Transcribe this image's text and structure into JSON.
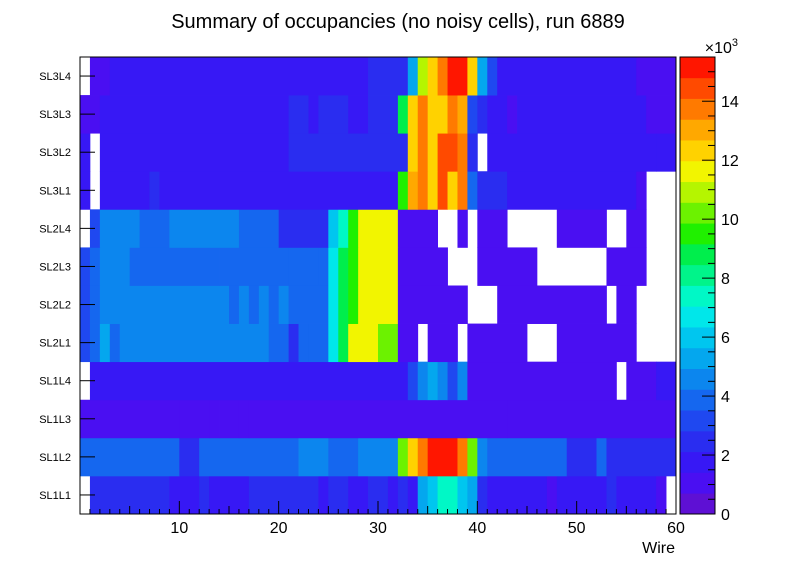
{
  "chart_data": {
    "type": "heatmap",
    "title": "Summary of occupancies (no noisy cells), run 6889",
    "xlabel": "Wire",
    "ylabel": "",
    "xlim": [
      0,
      60
    ],
    "x_ticks": [
      "10",
      "20",
      "30",
      "40",
      "50",
      "60"
    ],
    "y_categories": [
      "SL1L1",
      "SL1L2",
      "SL1L3",
      "SL1L4",
      "SL2L1",
      "SL2L2",
      "SL2L3",
      "SL2L4",
      "SL3L1",
      "SL3L2",
      "SL3L3",
      "SL3L4"
    ],
    "colorbar": {
      "range": [
        0,
        15.5
      ],
      "exponent_label": "×10",
      "exponent_power": "3",
      "ticks": [
        "0",
        "2",
        "4",
        "6",
        "8",
        "10",
        "12",
        "14"
      ]
    },
    "rows": [
      {
        "name": "SL1L1",
        "segments": [
          [
            0,
            1,
            null
          ],
          [
            1,
            9,
            2.8
          ],
          [
            9,
            12,
            1.6
          ],
          [
            12,
            13,
            2.4
          ],
          [
            13,
            17,
            1.6
          ],
          [
            17,
            24,
            2.8
          ],
          [
            24,
            25,
            1.6
          ],
          [
            25,
            27,
            2.8
          ],
          [
            27,
            29,
            1.6
          ],
          [
            29,
            31,
            2.8
          ],
          [
            31,
            32,
            1.6
          ],
          [
            32,
            33,
            2.8
          ],
          [
            33,
            34,
            1.6
          ],
          [
            34,
            35,
            5.3
          ],
          [
            35,
            36,
            6.2
          ],
          [
            36,
            38,
            7.2
          ],
          [
            38,
            39,
            6.2
          ],
          [
            39,
            40,
            5.3
          ],
          [
            40,
            41,
            2.8
          ],
          [
            41,
            47,
            1.6
          ],
          [
            47,
            48,
            1.0
          ],
          [
            48,
            53,
            1.6
          ],
          [
            53,
            54,
            2.4
          ],
          [
            54,
            58,
            1.6
          ],
          [
            58,
            59,
            1.0
          ],
          [
            59,
            60,
            null
          ]
        ]
      },
      {
        "name": "SL1L2",
        "segments": [
          [
            0,
            10,
            3.8
          ],
          [
            10,
            12,
            2.8
          ],
          [
            12,
            22,
            3.8
          ],
          [
            22,
            25,
            4.5
          ],
          [
            25,
            28,
            3.8
          ],
          [
            28,
            32,
            4.5
          ],
          [
            32,
            33,
            10.5
          ],
          [
            33,
            34,
            12.5
          ],
          [
            34,
            35,
            14.0
          ],
          [
            35,
            38,
            15.5
          ],
          [
            38,
            39,
            14.0
          ],
          [
            39,
            40,
            10.5
          ],
          [
            40,
            41,
            4.5
          ],
          [
            41,
            49,
            3.8
          ],
          [
            49,
            52,
            2.8
          ],
          [
            52,
            53,
            3.8
          ],
          [
            53,
            60,
            2.8
          ]
        ]
      },
      {
        "name": "SL1L3",
        "segments": [
          [
            0,
            9,
            1.2
          ],
          [
            9,
            10,
            0.8
          ],
          [
            10,
            13,
            1.2
          ],
          [
            13,
            14,
            0.8
          ],
          [
            14,
            16,
            1.2
          ],
          [
            16,
            17,
            0.8
          ],
          [
            17,
            39,
            1.2
          ],
          [
            39,
            43,
            0.8
          ],
          [
            43,
            60,
            0.8
          ]
        ]
      },
      {
        "name": "SL1L4",
        "segments": [
          [
            0,
            1,
            null
          ],
          [
            1,
            33,
            2.0
          ],
          [
            33,
            34,
            3.5
          ],
          [
            34,
            35,
            4.4
          ],
          [
            35,
            36,
            5.2
          ],
          [
            36,
            37,
            4.4
          ],
          [
            37,
            38,
            3.5
          ],
          [
            38,
            39,
            4.4
          ],
          [
            39,
            54,
            1.2
          ],
          [
            54,
            55,
            null
          ],
          [
            55,
            58,
            1.2
          ],
          [
            58,
            60,
            1.6
          ]
        ]
      },
      {
        "name": "SL2L1",
        "segments": [
          [
            0,
            1,
            3.4
          ],
          [
            1,
            2,
            3.8
          ],
          [
            2,
            3,
            5.0
          ],
          [
            3,
            4,
            3.8
          ],
          [
            4,
            7,
            4.5
          ],
          [
            7,
            19,
            4.5
          ],
          [
            19,
            21,
            3.8
          ],
          [
            21,
            22,
            2.8
          ],
          [
            22,
            23,
            3.8
          ],
          [
            23,
            25,
            3.8
          ],
          [
            25,
            26,
            6.6
          ],
          [
            26,
            27,
            8.8
          ],
          [
            27,
            30,
            11.5
          ],
          [
            30,
            32,
            10.5
          ],
          [
            32,
            34,
            1.2
          ],
          [
            34,
            35,
            null
          ],
          [
            35,
            38,
            1.2
          ],
          [
            38,
            39,
            null
          ],
          [
            39,
            45,
            1.2
          ],
          [
            45,
            48,
            null
          ],
          [
            48,
            56,
            1.2
          ],
          [
            56,
            60,
            null
          ]
        ]
      },
      {
        "name": "SL2L2",
        "segments": [
          [
            0,
            1,
            3.4
          ],
          [
            1,
            2,
            3.8
          ],
          [
            2,
            15,
            4.5
          ],
          [
            15,
            16,
            3.8
          ],
          [
            16,
            17,
            4.5
          ],
          [
            17,
            18,
            3.8
          ],
          [
            18,
            19,
            4.5
          ],
          [
            19,
            20,
            3.8
          ],
          [
            20,
            21,
            4.5
          ],
          [
            21,
            25,
            3.8
          ],
          [
            25,
            26,
            6.6
          ],
          [
            26,
            27,
            8.8
          ],
          [
            27,
            28,
            9.5
          ],
          [
            28,
            32,
            11.5
          ],
          [
            32,
            39,
            1.2
          ],
          [
            39,
            42,
            null
          ],
          [
            42,
            53,
            1.2
          ],
          [
            53,
            54,
            null
          ],
          [
            54,
            56,
            1.2
          ],
          [
            56,
            60,
            null
          ]
        ]
      },
      {
        "name": "SL2L3",
        "segments": [
          [
            0,
            1,
            3.4
          ],
          [
            1,
            2,
            3.8
          ],
          [
            2,
            5,
            4.5
          ],
          [
            5,
            14,
            3.8
          ],
          [
            14,
            21,
            3.8
          ],
          [
            21,
            24,
            3.8
          ],
          [
            24,
            25,
            3.8
          ],
          [
            25,
            26,
            6.6
          ],
          [
            26,
            27,
            8.8
          ],
          [
            27,
            28,
            9.5
          ],
          [
            28,
            32,
            11.5
          ],
          [
            32,
            37,
            1.2
          ],
          [
            37,
            40,
            null
          ],
          [
            40,
            46,
            1.2
          ],
          [
            46,
            53,
            null
          ],
          [
            53,
            57,
            1.2
          ],
          [
            57,
            60,
            null
          ]
        ]
      },
      {
        "name": "SL2L4",
        "segments": [
          [
            0,
            1,
            null
          ],
          [
            1,
            2,
            3.4
          ],
          [
            2,
            6,
            4.5
          ],
          [
            6,
            9,
            3.8
          ],
          [
            9,
            16,
            4.5
          ],
          [
            16,
            20,
            3.8
          ],
          [
            20,
            25,
            2.8
          ],
          [
            25,
            26,
            5.8
          ],
          [
            26,
            27,
            7.5
          ],
          [
            27,
            28,
            9.5
          ],
          [
            28,
            32,
            11.5
          ],
          [
            32,
            36,
            1.2
          ],
          [
            36,
            38,
            null
          ],
          [
            38,
            39,
            1.2
          ],
          [
            39,
            40,
            null
          ],
          [
            40,
            43,
            1.2
          ],
          [
            43,
            48,
            null
          ],
          [
            48,
            53,
            1.2
          ],
          [
            53,
            55,
            null
          ],
          [
            55,
            57,
            1.2
          ],
          [
            57,
            60,
            null
          ]
        ]
      },
      {
        "name": "SL3L1",
        "segments": [
          [
            0,
            1,
            1.6
          ],
          [
            1,
            2,
            null
          ],
          [
            2,
            7,
            2.0
          ],
          [
            7,
            8,
            2.8
          ],
          [
            8,
            32,
            2.0
          ],
          [
            32,
            33,
            9.5
          ],
          [
            33,
            34,
            13.0
          ],
          [
            34,
            35,
            14.0
          ],
          [
            35,
            36,
            12.5
          ],
          [
            36,
            37,
            14.5
          ],
          [
            37,
            38,
            12.5
          ],
          [
            38,
            39,
            14.0
          ],
          [
            39,
            40,
            3.8
          ],
          [
            40,
            43,
            2.8
          ],
          [
            43,
            56,
            2.0
          ],
          [
            56,
            57,
            1.0
          ],
          [
            57,
            58,
            null
          ],
          [
            58,
            60,
            null
          ]
        ]
      },
      {
        "name": "SL3L2",
        "segments": [
          [
            0,
            1,
            1.6
          ],
          [
            1,
            2,
            null
          ],
          [
            2,
            21,
            2.0
          ],
          [
            21,
            33,
            2.8
          ],
          [
            33,
            34,
            12.5
          ],
          [
            34,
            35,
            14.0
          ],
          [
            35,
            36,
            12.5
          ],
          [
            36,
            38,
            14.5
          ],
          [
            38,
            39,
            14.0
          ],
          [
            39,
            40,
            2.8
          ],
          [
            40,
            41,
            null
          ],
          [
            41,
            58,
            2.0
          ],
          [
            58,
            60,
            1.6
          ]
        ]
      },
      {
        "name": "SL3L3",
        "segments": [
          [
            0,
            2,
            1.2
          ],
          [
            2,
            21,
            2.0
          ],
          [
            21,
            23,
            2.8
          ],
          [
            23,
            24,
            2.0
          ],
          [
            24,
            27,
            2.8
          ],
          [
            27,
            29,
            2.0
          ],
          [
            29,
            32,
            2.8
          ],
          [
            32,
            33,
            9.0
          ],
          [
            33,
            34,
            12.5
          ],
          [
            34,
            35,
            14.0
          ],
          [
            35,
            37,
            12.5
          ],
          [
            37,
            38,
            14.0
          ],
          [
            38,
            39,
            13.0
          ],
          [
            39,
            40,
            3.4
          ],
          [
            40,
            41,
            2.8
          ],
          [
            41,
            43,
            2.0
          ],
          [
            43,
            44,
            1.0
          ],
          [
            44,
            57,
            2.0
          ],
          [
            57,
            60,
            1.2
          ]
        ]
      },
      {
        "name": "SL3L4",
        "segments": [
          [
            0,
            1,
            null
          ],
          [
            1,
            3,
            1.2
          ],
          [
            3,
            29,
            2.0
          ],
          [
            29,
            33,
            2.8
          ],
          [
            33,
            34,
            5.5
          ],
          [
            34,
            35,
            11.0
          ],
          [
            35,
            36,
            12.5
          ],
          [
            36,
            37,
            14.0
          ],
          [
            37,
            39,
            15.5
          ],
          [
            39,
            40,
            12.5
          ],
          [
            40,
            41,
            5.5
          ],
          [
            41,
            42,
            3.4
          ],
          [
            42,
            56,
            2.0
          ],
          [
            56,
            60,
            1.2
          ]
        ]
      }
    ]
  }
}
